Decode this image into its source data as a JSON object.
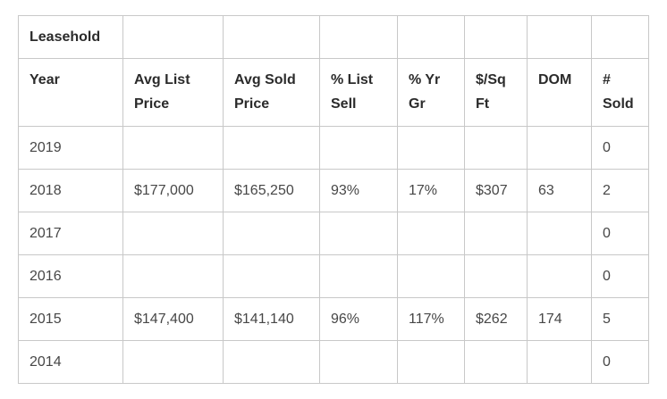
{
  "table": {
    "group_label": "Leasehold",
    "columns": [
      "Year",
      "Avg List Price",
      "Avg Sold Price",
      "% List Sell",
      "% Yr Gr",
      "$/Sq Ft",
      "DOM",
      "# Sold"
    ],
    "rows": [
      [
        "2019",
        "",
        "",
        "",
        "",
        "",
        "",
        "0"
      ],
      [
        "2018",
        "$177,000",
        "$165,250",
        "93%",
        "17%",
        "$307",
        "63",
        "2"
      ],
      [
        "2017",
        "",
        "",
        "",
        "",
        "",
        "",
        "0"
      ],
      [
        "2016",
        "",
        "",
        "",
        "",
        "",
        "",
        "0"
      ],
      [
        "2015",
        "$147,400",
        "$141,140",
        "96%",
        "117%",
        "$262",
        "174",
        "5"
      ],
      [
        "2014",
        "",
        "",
        "",
        "",
        "",
        "",
        "0"
      ]
    ]
  },
  "colors": {
    "header_text": "#2b2b2b",
    "body_text": "#474747",
    "border": "#c8c8c8",
    "background": "#ffffff"
  }
}
